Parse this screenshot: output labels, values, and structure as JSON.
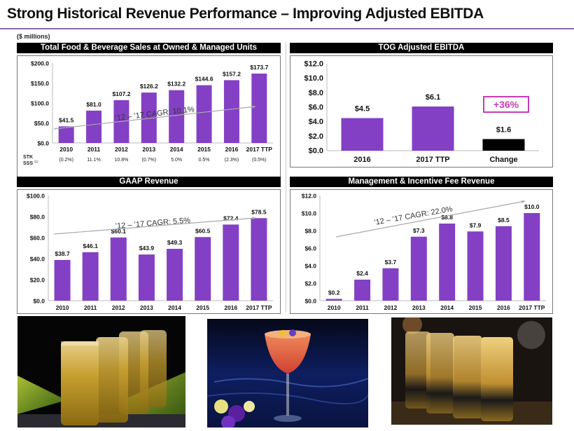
{
  "page": {
    "title": "Strong Historical Revenue Performance – Improving Adjusted EBITDA",
    "units": "($ millions)"
  },
  "colors": {
    "bar": "#8440C4",
    "change_bar": "#000000",
    "badge": "#C83CB4",
    "header_bg": "#000000",
    "title_rule": "#8A6AA8",
    "trend_arrow": "#A8A8A8"
  },
  "chart_data": [
    {
      "id": "fb-sales",
      "type": "bar",
      "title": "Total Food & Beverage Sales at Owned & Managed Units",
      "categories": [
        "2010",
        "2011",
        "2012",
        "2013",
        "2014",
        "2015",
        "2016",
        "2017 TTP"
      ],
      "values": [
        41.5,
        81.0,
        107.2,
        126.2,
        132.2,
        144.6,
        157.2,
        173.7
      ],
      "labels": [
        "$41.5",
        "$81.0",
        "$107.2",
        "$126.2",
        "$132.2",
        "$144.6",
        "$157.2",
        "$173.7"
      ],
      "ylim": [
        0,
        200
      ],
      "yticks": [
        "$0.0",
        "$50.0",
        "$100.0",
        "$150.0",
        "$200.0"
      ],
      "annotation": "’12 – ’17 CAGR: 10.1%",
      "sub_row": {
        "label_line1": "STK",
        "label_line2": "SSS",
        "label_sup": "(1)",
        "values": [
          "(0.2%)",
          "11.1%",
          "10.8%",
          "(0.7%)",
          "5.0%",
          "0.5%",
          "(2.3%)",
          "(0.5%)"
        ]
      },
      "xlabel": "",
      "ylabel": "",
      "grid": false,
      "legend": "none"
    },
    {
      "id": "adj-ebitda",
      "type": "bar",
      "title": "TOG Adjusted EBITDA",
      "categories": [
        "2016",
        "2017 TTP",
        "Change"
      ],
      "values": [
        4.5,
        6.1,
        1.6
      ],
      "labels": [
        "$4.5",
        "$6.1",
        "$1.6"
      ],
      "ylim": [
        0,
        12
      ],
      "yticks": [
        "$0.0",
        "$2.0",
        "$4.0",
        "$6.0",
        "$8.0",
        "$10.0",
        "$12.0"
      ],
      "badge": "+36%",
      "xlabel": "",
      "ylabel": "",
      "grid": false,
      "legend": "none"
    },
    {
      "id": "gaap-revenue",
      "type": "bar",
      "title": "GAAP Revenue",
      "categories": [
        "2010",
        "2011",
        "2012",
        "2013",
        "2014",
        "2015",
        "2016",
        "2017 TTP"
      ],
      "values": [
        38.7,
        46.1,
        60.1,
        43.9,
        49.3,
        60.5,
        72.4,
        78.5
      ],
      "labels": [
        "$38.7",
        "$46.1",
        "$60.1",
        "$43.9",
        "$49.3",
        "$60.5",
        "$72.4",
        "$78.5"
      ],
      "ylim": [
        0,
        100
      ],
      "yticks": [
        "$0.0",
        "$20.0",
        "$40.0",
        "$60.0",
        "$80.0",
        "$100.0"
      ],
      "annotation": "’12 – ’17 CAGR: 5.5%",
      "xlabel": "",
      "ylabel": "",
      "grid": false,
      "legend": "none"
    },
    {
      "id": "fee-revenue",
      "type": "bar",
      "title": "Management & Incentive Fee Revenue",
      "categories": [
        "2010",
        "2011",
        "2012",
        "2013",
        "2014",
        "2015",
        "2016",
        "2017 TTP"
      ],
      "values": [
        0.2,
        2.4,
        3.7,
        7.3,
        8.8,
        7.9,
        8.5,
        10.0
      ],
      "labels": [
        "$0.2",
        "$2.4",
        "$3.7",
        "$7.3",
        "$8.8",
        "$7.9",
        "$8.5",
        "$10.0"
      ],
      "ylim": [
        0,
        12
      ],
      "yticks": [
        "$0.0",
        "$2.0",
        "$4.0",
        "$6.0",
        "$8.0",
        "$10.0",
        "$12.0"
      ],
      "annotation": "’12 – ’17 CAGR: 22.0%",
      "xlabel": "",
      "ylabel": "",
      "grid": false,
      "legend": "none"
    }
  ],
  "photos": [
    {
      "name": "photo-highball-cocktails-palm"
    },
    {
      "name": "photo-coupe-cocktail-flowers"
    },
    {
      "name": "photo-highball-cocktails-bar"
    }
  ]
}
